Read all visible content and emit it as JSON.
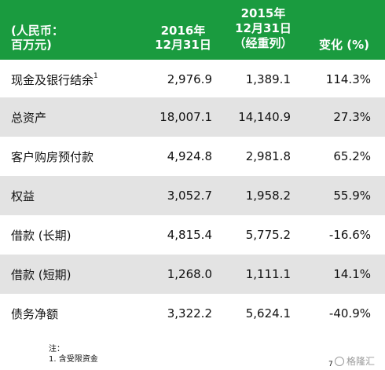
{
  "header": {
    "unit_line1": "(人民币：",
    "unit_line2": "百万元)",
    "col1_line1": "2016年",
    "col1_line2": "12月31日",
    "col2_line1": "2015年",
    "col2_line2": "12月31日",
    "col2_line3": "（经重列）",
    "col3": "变化 (%)"
  },
  "rows": [
    {
      "label": "现金及银行结余",
      "sup": "1",
      "v2016": "2,976.9",
      "v2015": "1,389.1",
      "change": "114.3%"
    },
    {
      "label": "总资产",
      "v2016": "18,007.1",
      "v2015": "14,140.9",
      "change": "27.3%"
    },
    {
      "label": "客户购房预付款",
      "v2016": "4,924.8",
      "v2015": "2,981.8",
      "change": "65.2%"
    },
    {
      "label": "权益",
      "v2016": "3,052.7",
      "v2015": "1,958.2",
      "change": "55.9%"
    },
    {
      "label": "借款 (长期)",
      "v2016": "4,815.4",
      "v2015": "5,775.2",
      "change": "-16.6%"
    },
    {
      "label": "借款 (短期)",
      "v2016": "1,268.0",
      "v2015": "1,111.1",
      "change": "14.1%"
    },
    {
      "label": "债务净额",
      "v2016": "3,322.2",
      "v2015": "5,624.1",
      "change": "-40.9%"
    }
  ],
  "notes": {
    "title": "注：",
    "item1": "1.  含受限资金"
  },
  "page_number": "7",
  "watermark": "格隆汇",
  "colors": {
    "header_bg": "#1a9b3f",
    "shade": "#e3e3e3"
  }
}
